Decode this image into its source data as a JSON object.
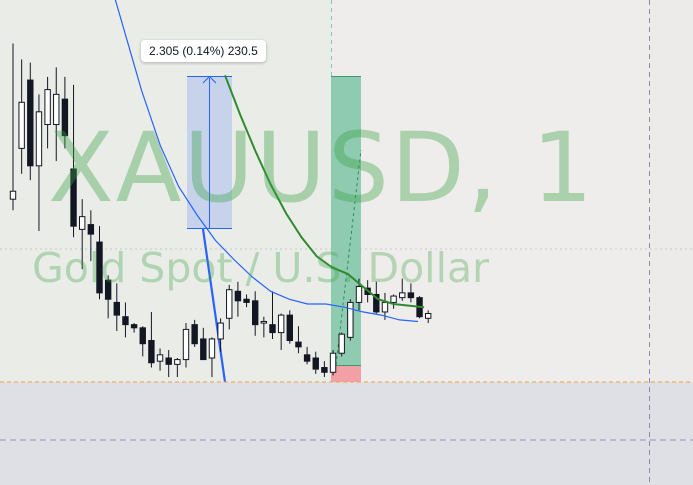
{
  "watermark": {
    "symbol_line": "XAUUSD, 1",
    "description_line": "Gold Spot / U.S. Dollar"
  },
  "measure_tool": {
    "label": "2.305 (0.14%) 230.5"
  },
  "colors": {
    "candle_up_body": "#ffffff",
    "candle_down_body": "#131722",
    "ma_fast": "#2962ff",
    "ma_slow": "#2e8b2e",
    "measure_fill": "rgba(41,98,255,0.18)",
    "profit_zone": "#8fcbb0",
    "loss_zone": "#f2a0a6",
    "price_line": "#f0a040"
  },
  "chart_data": {
    "type": "candlestick",
    "candles": [
      [
        11.2,
        21.0,
        10.5,
        11.7
      ],
      [
        14.4,
        20.0,
        12.8,
        17.3
      ],
      [
        18.7,
        19.8,
        12.4,
        13.3
      ],
      [
        13.3,
        17.8,
        9.2,
        16.7
      ],
      [
        15.9,
        18.9,
        14.4,
        18.1
      ],
      [
        15.9,
        19.5,
        13.6,
        17.8
      ],
      [
        17.5,
        18.9,
        14.4,
        15.2
      ],
      [
        13.1,
        18.4,
        8.8,
        9.5
      ],
      [
        9.3,
        11.2,
        6.8,
        10.1
      ],
      [
        9.6,
        10.5,
        7.3,
        9.0
      ],
      [
        8.5,
        9.5,
        4.9,
        5.3
      ],
      [
        6.1,
        6.4,
        3.7,
        4.9
      ],
      [
        4.7,
        5.9,
        2.9,
        3.9
      ],
      [
        3.8,
        4.7,
        2.5,
        3.3
      ],
      [
        3.3,
        3.4,
        2.8,
        3.1
      ],
      [
        3.1,
        3.2,
        1.3,
        2.1
      ],
      [
        2.3,
        4.1,
        0.6,
        0.9
      ],
      [
        1.0,
        1.8,
        0.4,
        1.4
      ],
      [
        1.2,
        1.7,
        0.0,
        0.8
      ],
      [
        0.8,
        1.2,
        0.0,
        1.1
      ],
      [
        1.1,
        3.4,
        0.6,
        3.0
      ],
      [
        3.3,
        3.6,
        1.9,
        2.1
      ],
      [
        2.4,
        3.1,
        1.1,
        1.1
      ],
      [
        1.2,
        2.5,
        0.0,
        2.4
      ],
      [
        2.4,
        3.7,
        1.6,
        3.4
      ],
      [
        3.7,
        5.8,
        3.0,
        5.5
      ],
      [
        5.4,
        6.0,
        3.8,
        4.8
      ],
      [
        4.9,
        5.2,
        4.4,
        4.7
      ],
      [
        4.8,
        5.4,
        2.6,
        3.3
      ],
      [
        3.4,
        3.8,
        2.5,
        3.5
      ],
      [
        3.3,
        5.4,
        2.4,
        2.8
      ],
      [
        2.8,
        4.0,
        1.7,
        3.9
      ],
      [
        3.9,
        4.2,
        2.1,
        2.3
      ],
      [
        2.2,
        3.2,
        1.5,
        1.9
      ],
      [
        1.4,
        1.9,
        0.8,
        1.0
      ],
      [
        1.2,
        1.6,
        0.2,
        0.5
      ],
      [
        0.6,
        1.0,
        0.0,
        0.3
      ],
      [
        0.3,
        1.7,
        0.1,
        1.5
      ],
      [
        1.5,
        2.8,
        1.3,
        2.7
      ],
      [
        2.5,
        4.9,
        2.3,
        4.7
      ],
      [
        4.7,
        6.2,
        4.2,
        5.7
      ],
      [
        5.6,
        6.1,
        4.7,
        5.2
      ],
      [
        5.2,
        6.0,
        4.0,
        4.1
      ],
      [
        4.1,
        5.3,
        3.6,
        4.7
      ],
      [
        4.7,
        5.2,
        4.3,
        5.1
      ],
      [
        5.0,
        6.2,
        4.8,
        5.3
      ],
      [
        5.3,
        5.9,
        4.7,
        5.0
      ],
      [
        5.0,
        5.1,
        3.7,
        3.8
      ],
      [
        3.7,
        4.2,
        3.4,
        4.0
      ]
    ],
    "series": [
      {
        "name": "",
        "y": [
          26.0,
          22.0,
          18.0,
          14.6,
          12.0,
          10.2,
          8.6,
          7.4,
          6.3,
          5.4,
          4.9,
          4.6,
          4.6,
          4.4,
          4.1,
          3.9,
          3.6,
          3.5
        ]
      },
      {
        "name": "",
        "y": [
          19.0,
          16.5,
          14.2,
          12.1,
          10.3,
          8.8,
          7.6,
          6.9,
          6.5,
          5.7,
          4.9,
          4.6,
          4.5,
          4.4
        ]
      }
    ],
    "y_range": [
      -0.5,
      25.0
    ],
    "reference_price": 0.0
  }
}
